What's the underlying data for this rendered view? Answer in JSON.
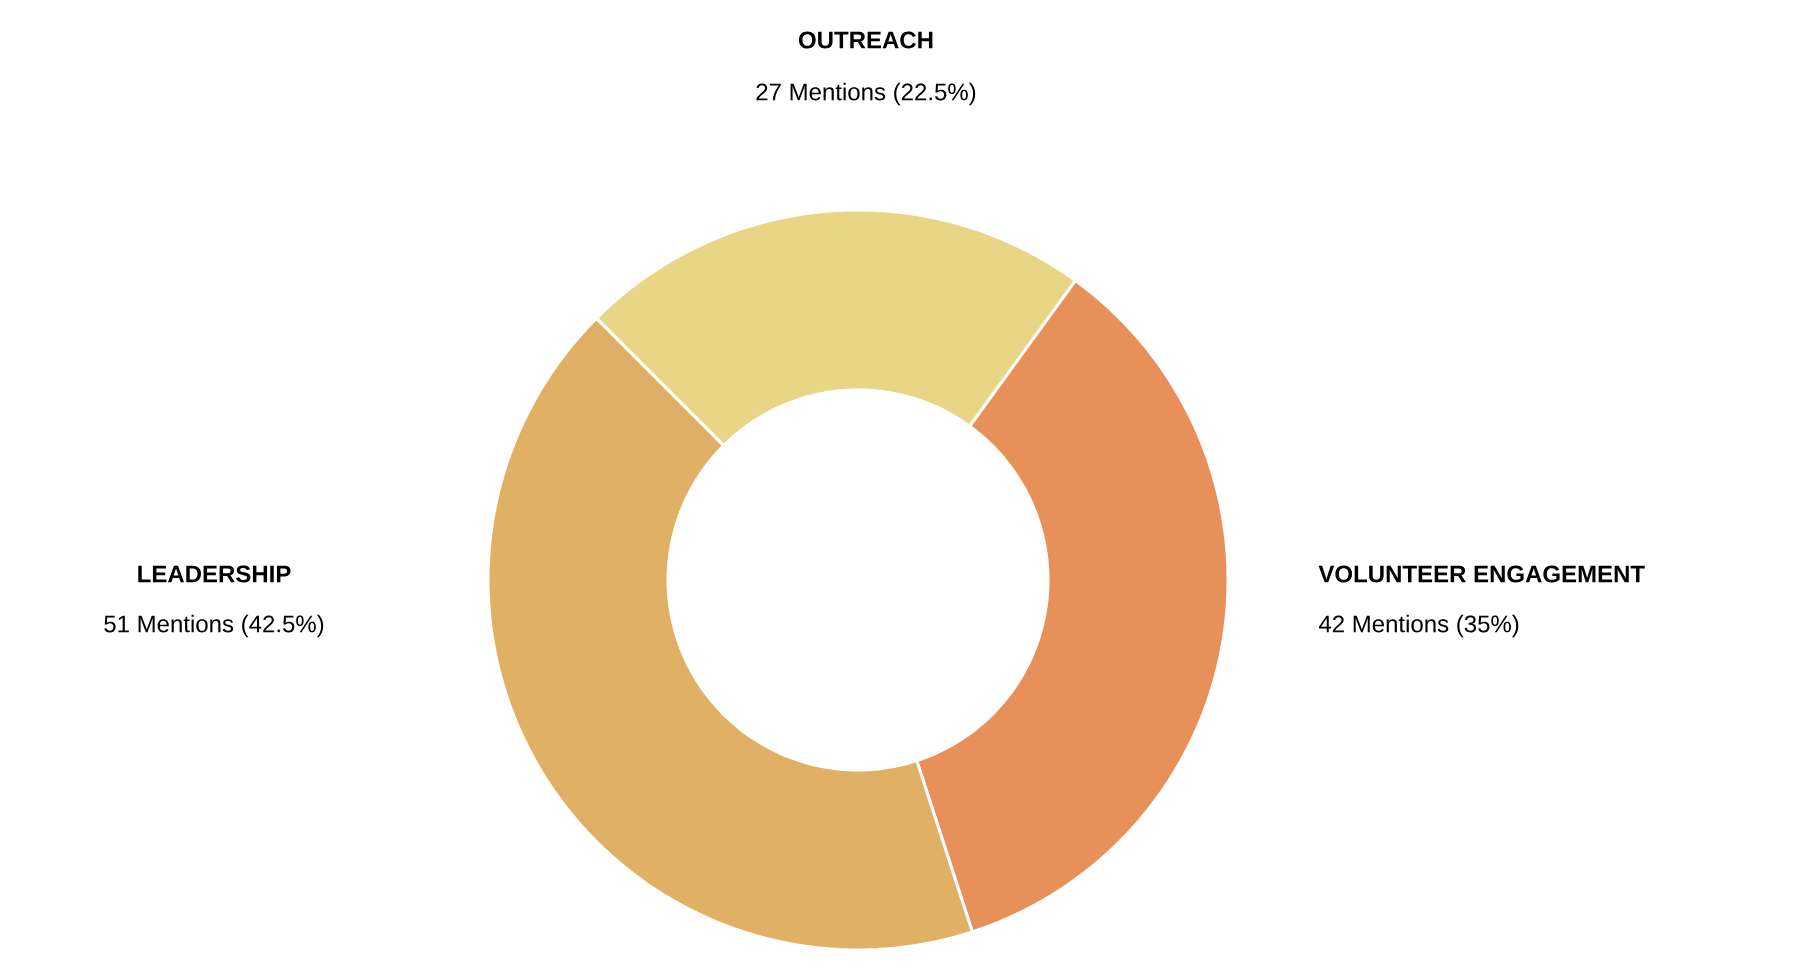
{
  "chart_data": {
    "type": "donut",
    "categories": [
      "OUTREACH",
      "VOLUNTEER ENGAGEMENT",
      "LEADERSHIP"
    ],
    "values": [
      27,
      42,
      51
    ],
    "value_labels": [
      "27 Mentions (22.5%)",
      "42 Mentions (35%)",
      "51 Mentions (42.5%)"
    ],
    "colors": [
      "#e8d586",
      "#e8905a",
      "#e0b064"
    ]
  }
}
